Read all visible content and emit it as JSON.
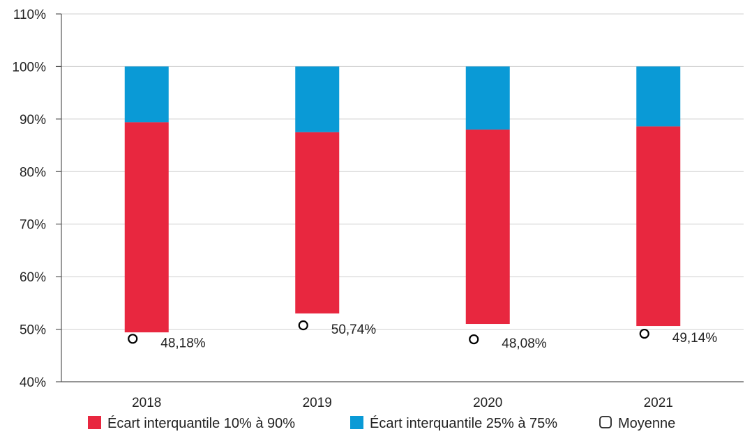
{
  "chart_data": {
    "type": "bar",
    "categories": [
      "2018",
      "2019",
      "2020",
      "2021"
    ],
    "y_ticks": [
      "40%",
      "50%",
      "60%",
      "70%",
      "80%",
      "90%",
      "100%",
      "110%"
    ],
    "ylim": [
      40,
      110
    ],
    "y_unit": "%",
    "grid": true,
    "legend_position": "bottom",
    "series": [
      {
        "name": "Écart interquantile 10% à 90%",
        "color": "#e8273f",
        "low": [
          49.4,
          53.0,
          51.0,
          50.6
        ],
        "high": [
          89.4,
          87.5,
          88.0,
          88.6
        ]
      },
      {
        "name": "Écart interquantile 25% à 75%",
        "color": "#0a9ad6",
        "low": [
          89.4,
          87.5,
          88.0,
          88.6
        ],
        "high": [
          100,
          100,
          100,
          100
        ]
      },
      {
        "name": "Moyenne",
        "color": "#000000",
        "values": [
          48.18,
          50.74,
          48.08,
          49.14
        ],
        "labels": [
          "48,18%",
          "50,74%",
          "48,08%",
          "49,14%"
        ]
      }
    ]
  }
}
